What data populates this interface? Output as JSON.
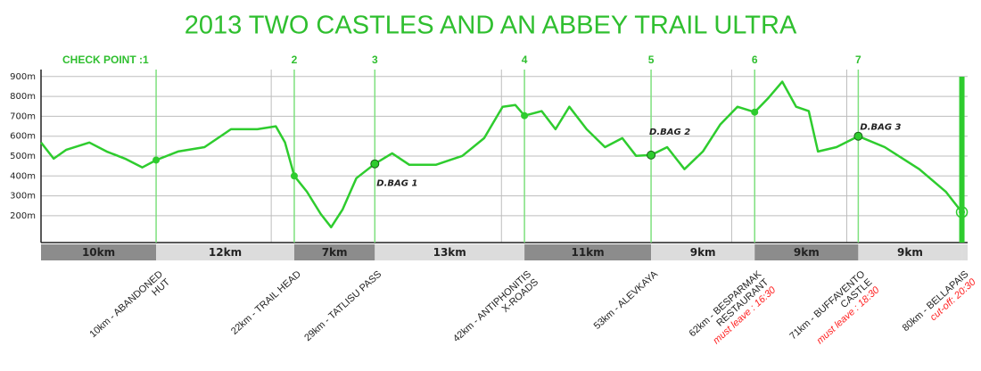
{
  "chart_data": {
    "type": "line",
    "title": "2013 TWO CASTLES AND AN ABBEY TRAIL ULTRA",
    "title_color": "#2fbf2f",
    "color": "#2ecc2e",
    "checkpoint_color": "#7ee07e",
    "note_color": "#ff2020",
    "ylim": [
      65,
      935
    ],
    "yticks": [
      {
        "value": 200,
        "label": "200m"
      },
      {
        "value": 300,
        "label": "300m"
      },
      {
        "value": 400,
        "label": "400m"
      },
      {
        "value": 500,
        "label": "500m"
      },
      {
        "value": 600,
        "label": "600m"
      },
      {
        "value": 700,
        "label": "700m"
      },
      {
        "value": 800,
        "label": "800m"
      },
      {
        "value": 900,
        "label": "900m"
      }
    ],
    "xlim": [
      0,
      80.5
    ],
    "xgrid": [
      20,
      40,
      60,
      70
    ],
    "grid": true,
    "x": [
      0,
      1.1,
      2.2,
      4.2,
      5.7,
      7.3,
      8.8,
      10,
      11.9,
      14.2,
      16.5,
      18.8,
      20.4,
      21.2,
      22,
      23.1,
      24.3,
      25.2,
      26.2,
      27.4,
      29,
      30.5,
      32,
      34.3,
      36.6,
      38.5,
      40.1,
      41.2,
      42,
      43.5,
      44.7,
      45.9,
      47.4,
      49,
      50.5,
      51.7,
      53,
      54.4,
      55.9,
      57.5,
      59,
      60.5,
      62,
      63.2,
      64.4,
      65.6,
      66.7,
      67.5,
      69.1,
      71,
      73.3,
      76.3,
      78.6,
      80
    ],
    "values": [
      568,
      487,
      532,
      568,
      523,
      487,
      443,
      480,
      523,
      545,
      635,
      635,
      650,
      568,
      400,
      321,
      209,
      142,
      232,
      389,
      461,
      514,
      456,
      456,
      501,
      590,
      748,
      757,
      703,
      726,
      635,
      748,
      635,
      545,
      590,
      501,
      505,
      545,
      434,
      523,
      658,
      748,
      721,
      793,
      874,
      748,
      726,
      523,
      545,
      600,
      545,
      434,
      321,
      218
    ],
    "checkpoint_title": "CHECK POINT :1",
    "checkpoints": [
      {
        "km": 10,
        "elevation": 480,
        "number": "1",
        "name": [
          "10km - ABANDONED",
          "HUT"
        ]
      },
      {
        "km": 22,
        "elevation": 400,
        "number": "2",
        "name": [
          "22km - TRAIL HEAD"
        ]
      },
      {
        "km": 29,
        "elevation": 461,
        "number": "3",
        "name": [
          "29km - TATLISU PASS"
        ],
        "bag": "D.BAG 1"
      },
      {
        "km": 42,
        "elevation": 703,
        "number": "4",
        "name": [
          "42km - ANTIPHONITIS",
          "X-ROADS"
        ]
      },
      {
        "km": 53,
        "elevation": 505,
        "number": "5",
        "name": [
          "53km - ALEVKAYA"
        ],
        "bag": "D.BAG 2"
      },
      {
        "km": 62,
        "elevation": 721,
        "number": "6",
        "name": [
          "62km - BESPARMAK",
          "RESTAURANT"
        ],
        "note": "must leave : 16:30"
      },
      {
        "km": 71,
        "elevation": 600,
        "number": "7",
        "name": [
          "71km - BUFFAVENTO",
          "CASTLE"
        ],
        "bag": "D.BAG 3",
        "note": "must leave : 18:30"
      },
      {
        "km": 80,
        "elevation": 218,
        "name": [
          "80km - BELLAPAIS"
        ],
        "note": "cut-off: 20:30",
        "finish": true
      }
    ],
    "segments": [
      {
        "label": "10km",
        "start": 0,
        "end": 10,
        "color": "#8c8c8c"
      },
      {
        "label": "12km",
        "start": 10,
        "end": 22,
        "color": "#dcdcdc"
      },
      {
        "label": "7km",
        "start": 22,
        "end": 29,
        "color": "#8c8c8c"
      },
      {
        "label": "13km",
        "start": 29,
        "end": 42,
        "color": "#dcdcdc"
      },
      {
        "label": "11km",
        "start": 42,
        "end": 53,
        "color": "#8c8c8c"
      },
      {
        "label": "9km",
        "start": 53,
        "end": 62,
        "color": "#dcdcdc"
      },
      {
        "label": "9km",
        "start": 62,
        "end": 71,
        "color": "#8c8c8c"
      },
      {
        "label": "9km",
        "start": 71,
        "end": 80,
        "color": "#dcdcdc"
      }
    ]
  }
}
